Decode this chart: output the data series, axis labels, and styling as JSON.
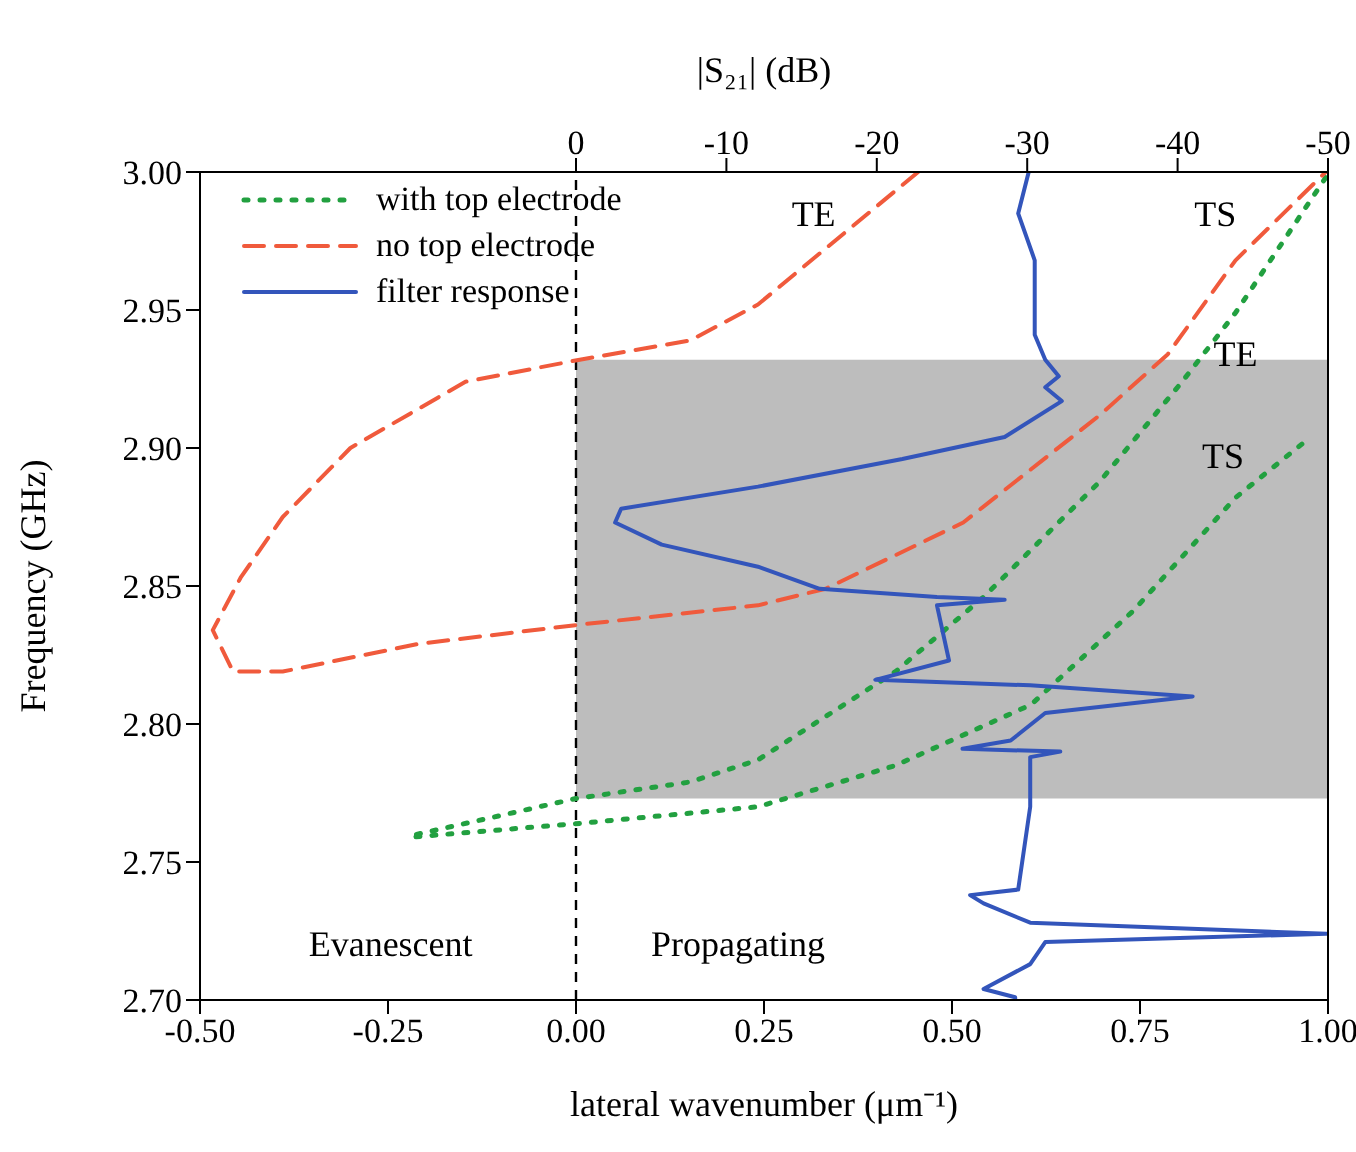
{
  "chart_data": {
    "type": "line",
    "xlabel": "lateral wavenumber (μm⁻¹)",
    "ylabel": "Frequency (GHz)",
    "x2label": "|S₂₁| (dB)",
    "xlim": [
      -0.5,
      1
    ],
    "xticks": [
      {
        "value": -0.5,
        "label": "-0.50"
      },
      {
        "value": -0.25,
        "label": "-0.25"
      },
      {
        "value": 0,
        "label": "0.00"
      },
      {
        "value": 0.25,
        "label": "0.25"
      },
      {
        "value": 0.5,
        "label": "0.50"
      },
      {
        "value": 0.75,
        "label": "0.75"
      },
      {
        "value": 1,
        "label": "1.00"
      }
    ],
    "x2lim": [
      25,
      -50
    ],
    "x2ticks": [
      0,
      -10,
      -20,
      -30,
      -40,
      -50
    ],
    "ylim": [
      2.7,
      3
    ],
    "yticks": [
      {
        "value": 2.7,
        "label": "2.70"
      },
      {
        "value": 2.75,
        "label": "2.75"
      },
      {
        "value": 2.8,
        "label": "2.80"
      },
      {
        "value": 2.85,
        "label": "2.85"
      },
      {
        "value": 2.9,
        "label": "2.90"
      },
      {
        "value": 2.95,
        "label": "2.95"
      },
      {
        "value": 3,
        "label": "3.00"
      }
    ],
    "legend": "top left",
    "marker": "none",
    "series": [
      {
        "name": "with top electrode",
        "color": "#22a040",
        "line_style": "dotted",
        "x": [
          0.997,
          0.877,
          0.806,
          0.697,
          0.542,
          0.425,
          0.242,
          0.152,
          0,
          -0.212,
          -0.22,
          0.005,
          0.242,
          0.425,
          0.605,
          0.741,
          0.877,
          0.977
        ],
        "values": [
          2.998,
          2.949,
          2.924,
          2.888,
          2.846,
          2.819,
          2.787,
          2.779,
          2.773,
          2.76,
          2.759,
          2.764,
          2.77,
          2.785,
          2.807,
          2.841,
          2.882,
          2.904
        ]
      },
      {
        "name": "no top electrode",
        "color": "#f05a3c",
        "line_style": "dashed",
        "x": [
          0.455,
          0.242,
          0.152,
          0.005,
          -0.147,
          -0.3,
          -0.39,
          -0.446,
          -0.483,
          -0.456,
          -0.39,
          -0.21,
          0.005,
          0.242,
          0.332,
          0.515,
          0.697,
          0.787,
          0.877,
          0.997
        ],
        "values": [
          3.0,
          2.952,
          2.939,
          2.932,
          2.924,
          2.9,
          2.875,
          2.853,
          2.834,
          2.819,
          2.819,
          2.829,
          2.836,
          2.843,
          2.849,
          2.873,
          2.912,
          2.934,
          2.968,
          3.0
        ]
      },
      {
        "name": "filter response",
        "color": "#3355bb",
        "line_style": "solid",
        "axis": "x2",
        "x": [
          -30.1,
          -29.4,
          -30.5,
          -30.5,
          -31.2,
          -32.1,
          -31.2,
          -32.3,
          -28.5,
          -21.7,
          -12.1,
          -3.0,
          -2.6,
          -5.7,
          -12.1,
          -16.2,
          -24.0,
          -28.5,
          -24.0,
          -24.8,
          -19.9,
          -30.2,
          -41.0,
          -31.2,
          -28.9,
          -25.7,
          -32.2,
          -30.2,
          -30.2,
          -29.4,
          -26.2,
          -27.1,
          -30.2,
          -49.9,
          -31.2,
          -30.2,
          -27.1,
          -29.2,
          -29.2
        ],
        "values": [
          3.0,
          2.985,
          2.968,
          2.941,
          2.932,
          2.926,
          2.922,
          2.917,
          2.904,
          2.896,
          2.886,
          2.878,
          2.873,
          2.865,
          2.857,
          2.849,
          2.846,
          2.845,
          2.843,
          2.823,
          2.816,
          2.814,
          2.81,
          2.804,
          2.794,
          2.791,
          2.79,
          2.788,
          2.77,
          2.74,
          2.738,
          2.735,
          2.728,
          2.724,
          2.721,
          2.713,
          2.704,
          2.701,
          2.7
        ]
      }
    ],
    "ref_lines": [
      {
        "axis": "x",
        "value": 0,
        "color": "#000000",
        "line_style": "dashed"
      }
    ],
    "bands": [
      {
        "axis": "y",
        "from": 2.773,
        "to": 2.932,
        "color": "#bdbdbd"
      }
    ],
    "annotations": [
      "TE",
      "TS",
      "TE",
      "TS",
      "Evanescent",
      "Propagating"
    ]
  }
}
